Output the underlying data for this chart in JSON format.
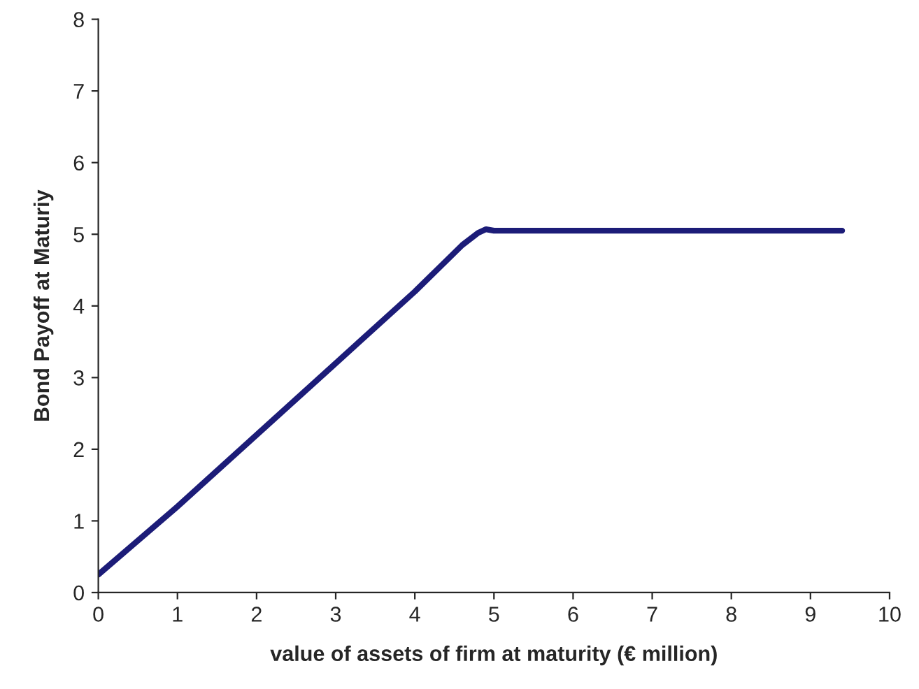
{
  "chart_data": {
    "type": "line",
    "xlabel": "value of assets of firm at maturity (€ million)",
    "ylabel": "Bond Payoff at Maturiy",
    "series": [
      {
        "color": "#1c1c78",
        "x": [
          0,
          1,
          2,
          3,
          4,
          4.6,
          4.8,
          4.9,
          5.0,
          9.4
        ],
        "values": [
          0.25,
          1.2,
          2.2,
          3.2,
          4.2,
          4.85,
          5.02,
          5.07,
          5.05,
          5.05
        ]
      }
    ],
    "xlim": [
      0,
      10
    ],
    "xticks": [
      0,
      1,
      2,
      3,
      4,
      5,
      6,
      7,
      8,
      9,
      10
    ],
    "ylim": [
      0,
      8
    ],
    "yticks": [
      0,
      1,
      2,
      3,
      4,
      5,
      6,
      7,
      8
    ],
    "grid": false,
    "legend": false,
    "marker": "none",
    "line_style": "solid"
  }
}
